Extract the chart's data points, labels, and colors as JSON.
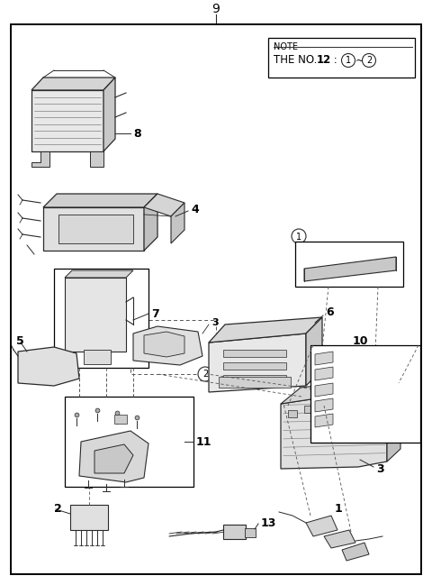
{
  "fig_width": 4.8,
  "fig_height": 6.49,
  "dpi": 100,
  "bg": "#ffffff",
  "lc": "#2a2a2a",
  "fc_light": "#e8e8e8",
  "fc_mid": "#d0d0d0",
  "fc_dark": "#b0b0b0",
  "black": "#000000",
  "note_line1": "NOTE",
  "note_line2": "THE NO.12 : ①~②",
  "title": "9",
  "label_1": "1",
  "label_2": "2",
  "label_3": "3",
  "label_4": "4",
  "label_5": "5",
  "label_6": "6",
  "label_7": "7",
  "label_8": "8",
  "label_10": "10",
  "label_11": "11",
  "label_13": "13",
  "circled_1": "①",
  "circled_2": "②"
}
